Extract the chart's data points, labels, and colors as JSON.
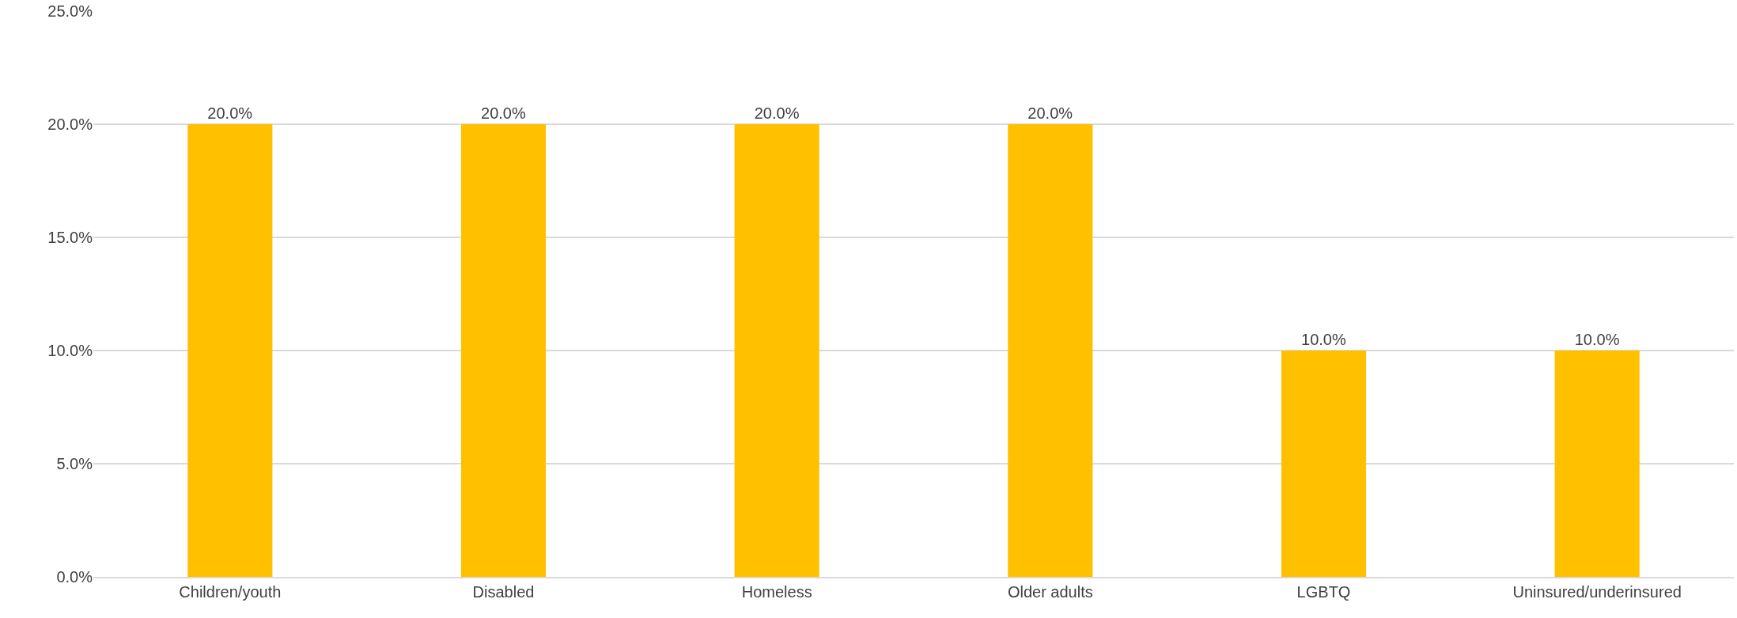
{
  "chart_data": {
    "type": "bar",
    "categories": [
      "Children/youth",
      "Disabled",
      "Homeless",
      "Older adults",
      "LGBTQ",
      "Uninsured/underinsured"
    ],
    "values": [
      20,
      20,
      20,
      20,
      10,
      10
    ],
    "value_labels": [
      "20.0%",
      "20.0%",
      "20.0%",
      "20.0%",
      "10.0%",
      "10.0%"
    ],
    "color": "#ffc000",
    "ylim": [
      0,
      25
    ],
    "yticks": [
      {
        "value": 0,
        "label": "0.0%"
      },
      {
        "value": 5,
        "label": "5.0%"
      },
      {
        "value": 10,
        "label": "10.0%"
      },
      {
        "value": 15,
        "label": "15.0%"
      },
      {
        "value": 20,
        "label": "20.0%"
      },
      {
        "value": 25,
        "label": "25.0%"
      }
    ],
    "grid": "y",
    "legend": false
  }
}
